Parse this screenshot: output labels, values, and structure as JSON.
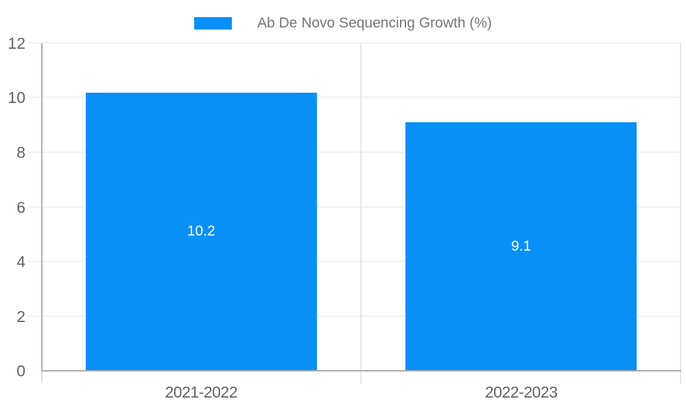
{
  "legend": {
    "label": "Ab De Novo Sequencing Growth (%)"
  },
  "chart_data": {
    "type": "bar",
    "title": "Ab De Novo Sequencing Growth (%)",
    "categories": [
      "2021-2022",
      "2022-2023"
    ],
    "values": [
      10.2,
      9.1
    ],
    "data_labels": [
      "10.2",
      "9.1"
    ],
    "xlabel": "",
    "ylabel": "",
    "ylim": [
      0,
      12
    ],
    "ytick_step": 2,
    "grid": true,
    "legend_position": "top"
  },
  "colors": {
    "bar": "#0990f7",
    "gridline": "#e6e6e6",
    "axis_line": "#ababab",
    "axis_text": "#616161",
    "legend_text": "#757575",
    "data_label_text": "#ffffff",
    "background": "#ffffff"
  }
}
